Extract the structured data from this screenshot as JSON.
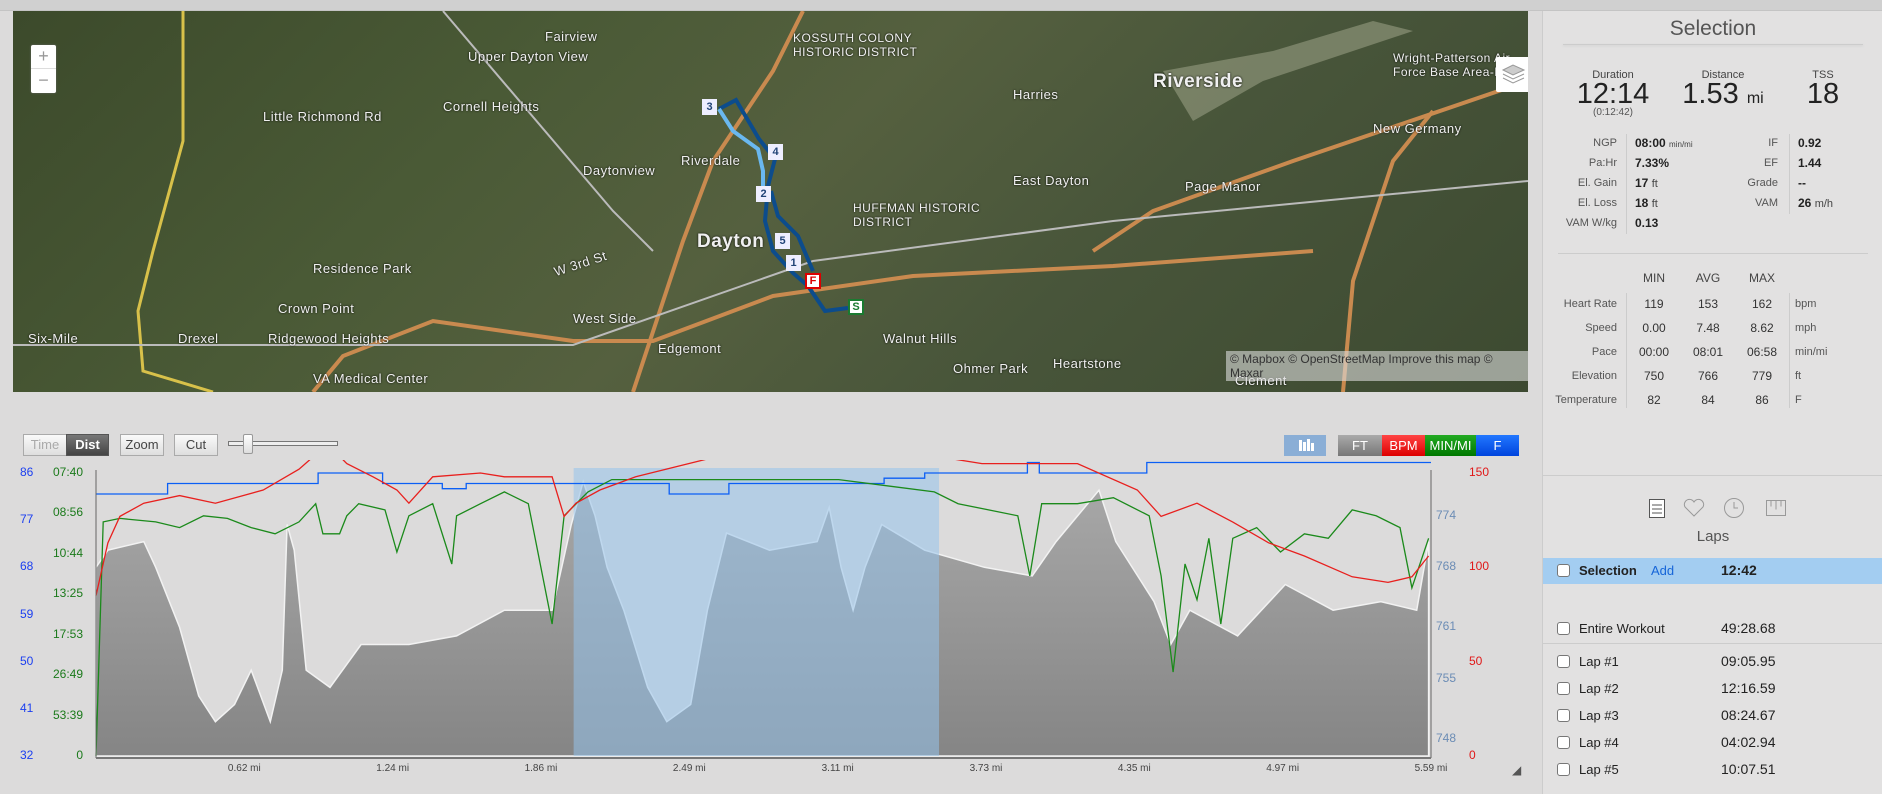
{
  "map": {
    "labels": [
      "Dayton",
      "Riverside",
      "Fairview",
      "Upper Dayton View",
      "Cornell Heights",
      "Daytonview",
      "Riverdale",
      "Residence Park",
      "Crown Point",
      "Ridgewood Heights",
      "West Side",
      "Edgemont",
      "Walnut Hills",
      "Harries",
      "East Dayton",
      "Page Manor",
      "Ohmer Park",
      "Heartstone",
      "Little Richmond Rd",
      "W 3rd St",
      "New Germany",
      "Kossuth Colony Historic District",
      "Huffman Historic District",
      "Wright-Patterson Air Force Base Area-B",
      "VA Medical Center",
      "Six-Mile",
      "Drexel",
      "Clement"
    ],
    "route_markers": [
      "1",
      "2",
      "3",
      "4",
      "5"
    ],
    "start_label": "S",
    "finish_label": "F",
    "zoom_in": "+",
    "zoom_out": "−",
    "attribution": "© Mapbox © OpenStreetMap Improve this map © Maxar",
    "layers_icon": "layers-icon"
  },
  "toolbar": {
    "time": "Time",
    "dist": "Dist",
    "zoom": "Zoom",
    "cut": "Cut",
    "slider_value": 0.15
  },
  "legend": {
    "ft": "FT",
    "bpm": "BPM",
    "pace": "MIN/MI",
    "temp": "F",
    "colors": {
      "ft": "#8a8a8a",
      "bpm": "#e8201e",
      "pace": "#1b8a1b",
      "temp": "#0b5ff5"
    }
  },
  "chart_data": {
    "type": "line",
    "xlabel": "",
    "x_unit": "mi",
    "xlim": [
      0,
      5.59
    ],
    "x_ticks": [
      "0.62 mi",
      "1.24 mi",
      "1.86 mi",
      "2.49 mi",
      "3.11 mi",
      "3.73 mi",
      "4.35 mi",
      "4.97 mi",
      "5.59 mi"
    ],
    "selection": [
      2.0,
      3.53
    ],
    "axes": {
      "temp": {
        "ticks": [
          "32",
          "41",
          "50",
          "59",
          "68",
          "77",
          "86"
        ],
        "range": [
          32,
          86
        ]
      },
      "pace": {
        "ticks": [
          "0",
          "53:39",
          "26:49",
          "17:53",
          "13:25",
          "10:44",
          "08:56",
          "07:40"
        ]
      },
      "elevation": {
        "ticks": [
          "748",
          "755",
          "761",
          "768",
          "774"
        ],
        "range": [
          746,
          779
        ]
      },
      "bpm": {
        "ticks": [
          "0",
          "50",
          "100",
          "150"
        ],
        "range": [
          0,
          150
        ]
      }
    },
    "series": [
      {
        "name": "FT",
        "type": "area",
        "points": [
          [
            0,
            768
          ],
          [
            0.05,
            770
          ],
          [
            0.2,
            771
          ],
          [
            0.25,
            768
          ],
          [
            0.35,
            761
          ],
          [
            0.43,
            753
          ],
          [
            0.5,
            750
          ],
          [
            0.58,
            752
          ],
          [
            0.65,
            756
          ],
          [
            0.73,
            750
          ],
          [
            0.78,
            756
          ],
          [
            0.8,
            773
          ],
          [
            0.83,
            770
          ],
          [
            0.88,
            756
          ],
          [
            0.98,
            754
          ],
          [
            1.11,
            759
          ],
          [
            1.31,
            759
          ],
          [
            1.51,
            760
          ],
          [
            1.71,
            763
          ],
          [
            1.91,
            763
          ],
          [
            1.99,
            773
          ],
          [
            2.04,
            778
          ],
          [
            2.09,
            774
          ],
          [
            2.14,
            768
          ],
          [
            2.21,
            763
          ],
          [
            2.31,
            754
          ],
          [
            2.39,
            750
          ],
          [
            2.49,
            752
          ],
          [
            2.56,
            763
          ],
          [
            2.64,
            772
          ],
          [
            2.82,
            770
          ],
          [
            3.02,
            771
          ],
          [
            3.07,
            775
          ],
          [
            3.12,
            768
          ],
          [
            3.17,
            763
          ],
          [
            3.22,
            768
          ],
          [
            3.29,
            773
          ],
          [
            3.47,
            770
          ],
          [
            3.72,
            768
          ],
          [
            3.92,
            767
          ],
          [
            4.02,
            771
          ],
          [
            4.2,
            777
          ],
          [
            4.27,
            771
          ],
          [
            4.43,
            764
          ],
          [
            4.5,
            759
          ],
          [
            4.58,
            763
          ],
          [
            4.78,
            760
          ],
          [
            4.98,
            766
          ],
          [
            5.18,
            763
          ],
          [
            5.38,
            764
          ],
          [
            5.53,
            763
          ],
          [
            5.58,
            771
          ]
        ]
      },
      {
        "name": "BPM",
        "points": [
          [
            0,
            85
          ],
          [
            0.05,
            113
          ],
          [
            0.1,
            127
          ],
          [
            0.2,
            134
          ],
          [
            0.35,
            138
          ],
          [
            0.5,
            134
          ],
          [
            0.7,
            141
          ],
          [
            0.85,
            152
          ],
          [
            0.94,
            162
          ],
          [
            0.98,
            164
          ],
          [
            1.05,
            155
          ],
          [
            1.16,
            148
          ],
          [
            1.26,
            141
          ],
          [
            1.31,
            134
          ],
          [
            1.41,
            148
          ],
          [
            1.61,
            150
          ],
          [
            1.71,
            148
          ],
          [
            1.91,
            148
          ],
          [
            1.96,
            127
          ],
          [
            2.01,
            134
          ],
          [
            2.11,
            141
          ],
          [
            2.26,
            148
          ],
          [
            2.61,
            159
          ],
          [
            3.11,
            159
          ],
          [
            3.51,
            159
          ],
          [
            3.71,
            155
          ],
          [
            4.11,
            155
          ],
          [
            4.36,
            141
          ],
          [
            4.46,
            127
          ],
          [
            4.61,
            134
          ],
          [
            4.76,
            124
          ],
          [
            4.91,
            113
          ],
          [
            5.06,
            106
          ],
          [
            5.26,
            95
          ],
          [
            5.41,
            92
          ],
          [
            5.51,
            95
          ],
          [
            5.58,
            106
          ]
        ]
      },
      {
        "name": "MIN/MI",
        "points": [
          [
            0,
            "0"
          ],
          [
            0.03,
            "09:16"
          ],
          [
            0.1,
            "09:08"
          ],
          [
            0.25,
            "09:16"
          ],
          [
            0.35,
            "09:30"
          ],
          [
            0.45,
            "09:02"
          ],
          [
            0.55,
            "09:08"
          ],
          [
            0.65,
            "09:30"
          ],
          [
            0.75,
            "09:46"
          ],
          [
            0.85,
            "09:16"
          ],
          [
            0.92,
            "08:36"
          ],
          [
            0.95,
            "09:46"
          ],
          [
            1.02,
            "09:46"
          ],
          [
            1.05,
            "09:02"
          ],
          [
            1.1,
            "08:36"
          ],
          [
            1.21,
            "08:49"
          ],
          [
            1.26,
            "10:38"
          ],
          [
            1.31,
            "09:02"
          ],
          [
            1.41,
            "08:36"
          ],
          [
            1.49,
            "11:18"
          ],
          [
            1.51,
            "09:02"
          ],
          [
            1.61,
            "08:36"
          ],
          [
            1.71,
            "08:13"
          ],
          [
            1.81,
            "08:36"
          ],
          [
            1.91,
            "16:26"
          ],
          [
            1.96,
            "09:02"
          ],
          [
            2.06,
            "08:13"
          ],
          [
            2.16,
            "07:51"
          ],
          [
            2.61,
            "07:51"
          ],
          [
            3.11,
            "07:51"
          ],
          [
            3.51,
            "08:13"
          ],
          [
            3.61,
            "08:36"
          ],
          [
            3.86,
            "09:02"
          ],
          [
            3.91,
            "12:03"
          ],
          [
            3.96,
            "08:36"
          ],
          [
            4.11,
            "08:36"
          ],
          [
            4.26,
            "08:24"
          ],
          [
            4.41,
            "09:02"
          ],
          [
            4.46,
            "12:03"
          ],
          [
            4.51,
            "25:52"
          ],
          [
            4.56,
            "11:18"
          ],
          [
            4.61,
            "13:53"
          ],
          [
            4.66,
            "09:58"
          ],
          [
            4.71,
            "16:26"
          ],
          [
            4.76,
            "09:58"
          ],
          [
            4.86,
            "09:30"
          ],
          [
            4.96,
            "10:38"
          ],
          [
            5.06,
            "09:46"
          ],
          [
            5.16,
            "09:58"
          ],
          [
            5.26,
            "08:49"
          ],
          [
            5.36,
            "09:02"
          ],
          [
            5.46,
            "09:30"
          ],
          [
            5.51,
            "12:54"
          ],
          [
            5.58,
            "09:58"
          ]
        ]
      },
      {
        "name": "F",
        "type": "step",
        "points": [
          [
            0,
            82
          ],
          [
            0.3,
            84
          ],
          [
            0.93,
            86
          ],
          [
            1.2,
            84
          ],
          [
            1.45,
            83
          ],
          [
            1.55,
            84
          ],
          [
            2.4,
            82
          ],
          [
            2.65,
            84
          ],
          [
            3.3,
            85
          ],
          [
            3.47,
            86
          ],
          [
            3.9,
            88
          ],
          [
            3.95,
            86
          ],
          [
            4.4,
            88
          ],
          [
            5.59,
            88
          ]
        ]
      }
    ]
  },
  "selection_panel": {
    "title": "Selection",
    "duration_label": "Duration",
    "duration": "12:14",
    "duration_elapsed": "(0:12:42)",
    "distance_label": "Distance",
    "distance": "1.53",
    "distance_unit": "mi",
    "tss_label": "TSS",
    "tss": "18",
    "left_metrics": [
      {
        "label": "NGP",
        "value": "08:00",
        "unit": "min/mi"
      },
      {
        "label": "Pa:Hr",
        "value": "7.33%",
        "unit": ""
      },
      {
        "label": "El. Gain",
        "value": "17",
        "unit": "ft"
      },
      {
        "label": "El. Loss",
        "value": "18",
        "unit": "ft"
      },
      {
        "label": "VAM W/kg",
        "value": "0.13",
        "unit": ""
      }
    ],
    "right_metrics": [
      {
        "label": "IF",
        "value": "0.92",
        "unit": ""
      },
      {
        "label": "EF",
        "value": "1.44",
        "unit": ""
      },
      {
        "label": "Grade",
        "value": "--",
        "unit": ""
      },
      {
        "label": "VAM",
        "value": "26",
        "unit": "m/h"
      }
    ],
    "table": {
      "headers": [
        "MIN",
        "AVG",
        "MAX"
      ],
      "rows": [
        {
          "label": "Heart Rate",
          "min": "119",
          "avg": "153",
          "max": "162",
          "unit": "bpm"
        },
        {
          "label": "Speed",
          "min": "0.00",
          "avg": "7.48",
          "max": "8.62",
          "unit": "mph"
        },
        {
          "label": "Pace",
          "min": "00:00",
          "avg": "08:01",
          "max": "06:58",
          "unit": "min/mi"
        },
        {
          "label": "Elevation",
          "min": "750",
          "avg": "766",
          "max": "779",
          "unit": "ft"
        },
        {
          "label": "Temperature",
          "min": "82",
          "avg": "84",
          "max": "86",
          "unit": "F"
        }
      ]
    }
  },
  "laps_panel": {
    "title": "Laps",
    "tabs": [
      "laps-icon",
      "heart-icon",
      "clock-icon",
      "ruler-icon"
    ],
    "selection": {
      "label": "Selection",
      "add": "Add",
      "time": "12:42"
    },
    "entire": {
      "label": "Entire Workout",
      "time": "49:28.68"
    },
    "laps": [
      {
        "label": "Lap #1",
        "time": "09:05.95"
      },
      {
        "label": "Lap #2",
        "time": "12:16.59"
      },
      {
        "label": "Lap #3",
        "time": "08:24.67"
      },
      {
        "label": "Lap #4",
        "time": "04:02.94"
      },
      {
        "label": "Lap #5",
        "time": "10:07.51"
      }
    ]
  }
}
